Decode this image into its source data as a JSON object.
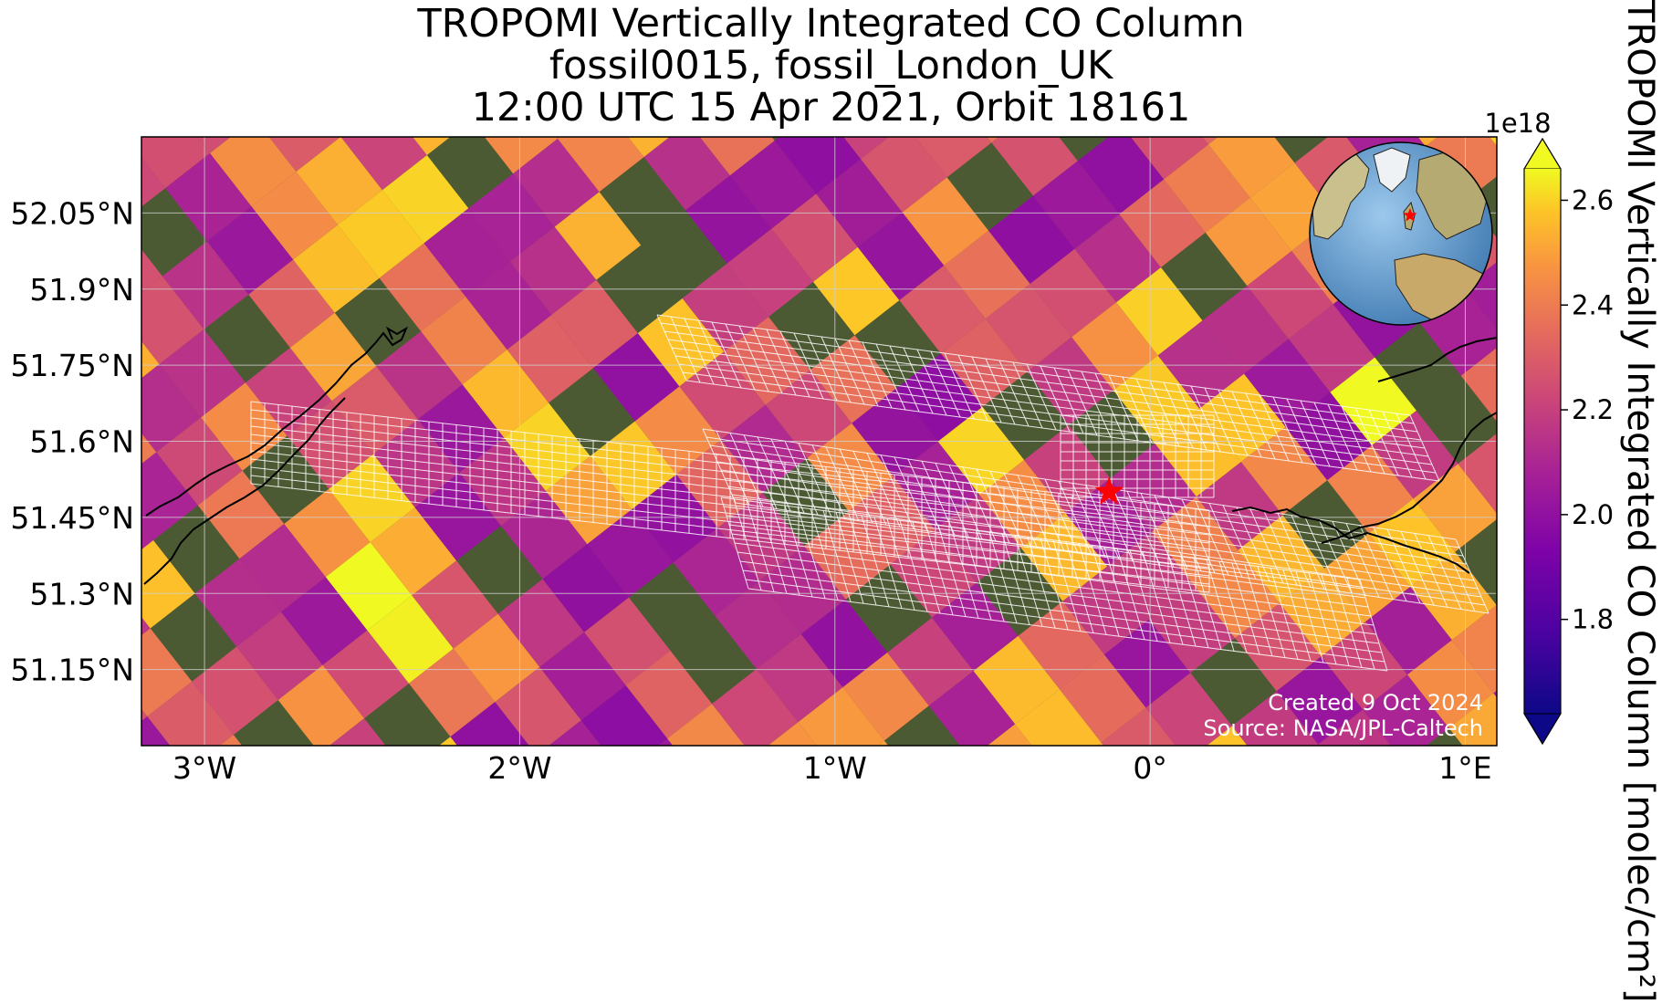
{
  "title": {
    "line1": "TROPOMI Vertically Integrated CO Column",
    "line2": "fossil0015, fossil_London_UK",
    "line3": "12:00 UTC 15 Apr 2021, Orbit 18161"
  },
  "axes": {
    "x_ticks": [
      {
        "value": -3,
        "label": "3°W"
      },
      {
        "value": -2,
        "label": "2°W"
      },
      {
        "value": -1,
        "label": "1°W"
      },
      {
        "value": 0,
        "label": "0°"
      },
      {
        "value": 1,
        "label": "1°E"
      }
    ],
    "y_ticks": [
      {
        "value": 52.05,
        "label": "52.05°N"
      },
      {
        "value": 51.9,
        "label": "51.9°N"
      },
      {
        "value": 51.75,
        "label": "51.75°N"
      },
      {
        "value": 51.6,
        "label": "51.6°N"
      },
      {
        "value": 51.45,
        "label": "51.45°N"
      },
      {
        "value": 51.3,
        "label": "51.3°N"
      },
      {
        "value": 51.15,
        "label": "51.15°N"
      }
    ],
    "lon_range": [
      -3.2,
      1.1
    ],
    "lat_range": [
      51.0,
      52.2
    ],
    "gridlines": true
  },
  "colorbar": {
    "label": "TROPOMI Vertically Integrated CO Column [molec/cm²]",
    "exponent": "1e18",
    "ticks": [
      {
        "value": 1.8,
        "label": "1.8"
      },
      {
        "value": 2.0,
        "label": "2.0"
      },
      {
        "value": 2.2,
        "label": "2.2"
      },
      {
        "value": 2.4,
        "label": "2.4"
      },
      {
        "value": 2.6,
        "label": "2.6"
      }
    ],
    "range": [
      1.62,
      2.66
    ],
    "colormap": "plasma",
    "extend": "both"
  },
  "marker": {
    "name": "London",
    "lon": -0.13,
    "lat": 51.5,
    "color": "#ff0000",
    "symbol": "star"
  },
  "inset": {
    "type": "globe",
    "marker_color": "#ff0000"
  },
  "credits": {
    "created": "Created 9 Oct 2024",
    "source": "Source: NASA/JPL-Caltech"
  },
  "colors": {
    "land": "#4c5a34",
    "grid": "#d0d0d0",
    "target_grid": "#ffffff",
    "coast": "#000000"
  }
}
